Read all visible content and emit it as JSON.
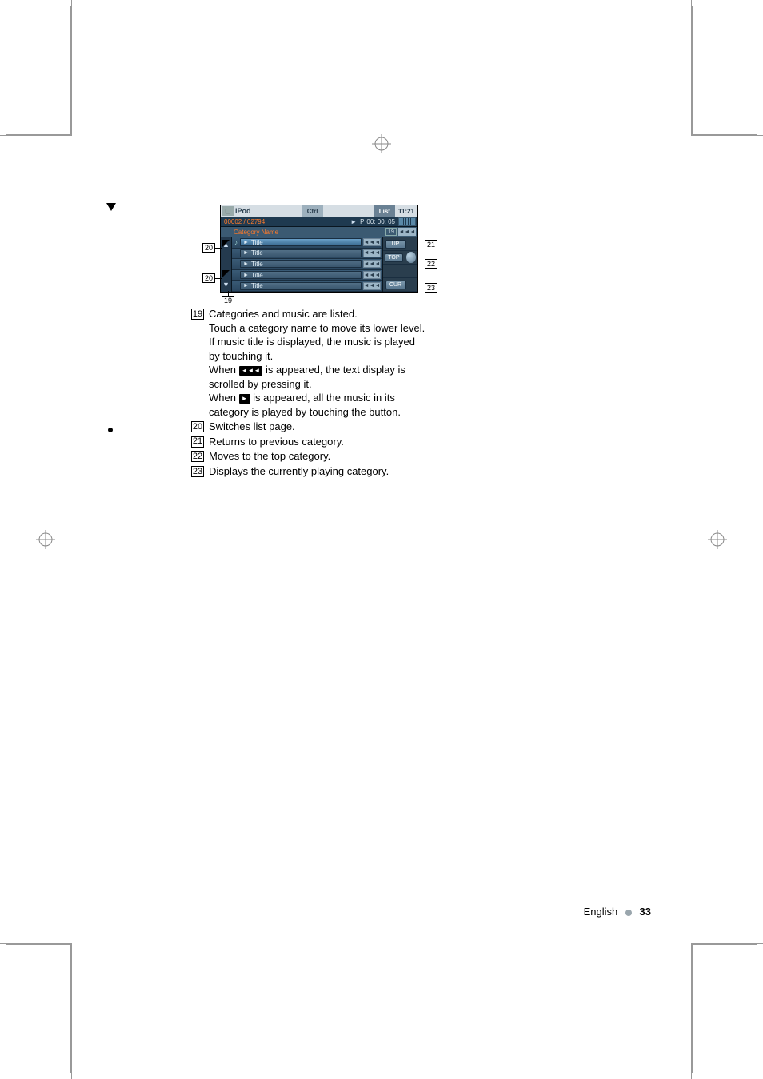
{
  "page": {
    "language": "English",
    "number": "33"
  },
  "screenshot": {
    "source_label": "iPod",
    "top_tabs": {
      "ctrl": "Ctrl",
      "list": "List"
    },
    "clock": "11:21",
    "info": {
      "counter": "00002 / 02794",
      "play_symbol": "►",
      "p_label": "P",
      "time": "00: 00: 05"
    },
    "category_row": {
      "label": "Category Name",
      "box_number": "19",
      "scroll_glyph": "◄◄◄"
    },
    "side_arrows": {
      "up": "▲",
      "down": "▼"
    },
    "rows": [
      {
        "title": "Title",
        "scroll": "◄◄◄",
        "first": true
      },
      {
        "title": "Title",
        "scroll": "◄◄◄"
      },
      {
        "title": "Title",
        "scroll": "◄◄◄"
      },
      {
        "title": "Title",
        "scroll": "◄◄◄"
      },
      {
        "title": "Title",
        "scroll": "◄◄◄"
      }
    ],
    "right_buttons": {
      "up": "UP",
      "top": "TOP",
      "cur": "CUR"
    },
    "row_play_glyph": "►"
  },
  "callouts": {
    "c19": "19",
    "c20a": "20",
    "c20b": "20",
    "c21": "21",
    "c22": "22",
    "c23": "23"
  },
  "descriptions": [
    {
      "num": "19",
      "text": "Categories and music are listed.\nTouch a category name to move its lower level. If music title is displayed, the music is played by touching it.\nWhen {{scroll}} is appeared, the text display is scrolled by pressing it.\nWhen {{play}} is appeared, all the music in its category is played by touching the button."
    },
    {
      "num": "20",
      "text": "Switches list page."
    },
    {
      "num": "21",
      "text": "Returns to previous category."
    },
    {
      "num": "22",
      "text": "Moves to the top category."
    },
    {
      "num": "23",
      "text": "Displays the currently playing category."
    }
  ],
  "inline_glyphs": {
    "scroll": "◄◄◄",
    "play": "►"
  },
  "colors": {
    "accent_orange": "#ff7a2a",
    "panel_blue": "#3b5a72",
    "light_blue": "#9db6c7"
  }
}
